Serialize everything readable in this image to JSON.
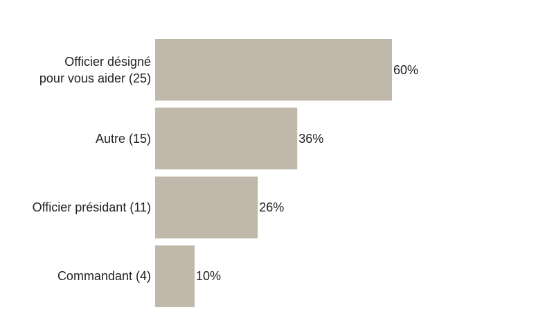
{
  "chart_data": {
    "type": "bar",
    "orientation": "horizontal",
    "categories": [
      "Officier désigné\npour vous aider (25)",
      "Autre (15)",
      "Officier présidant (11)",
      "Commandant (4)"
    ],
    "values": [
      60,
      36,
      26,
      10
    ],
    "value_labels": [
      "60%",
      "36%",
      "26%",
      "10%"
    ],
    "color": "#bfb8ab",
    "xlim": [
      0,
      100
    ]
  }
}
